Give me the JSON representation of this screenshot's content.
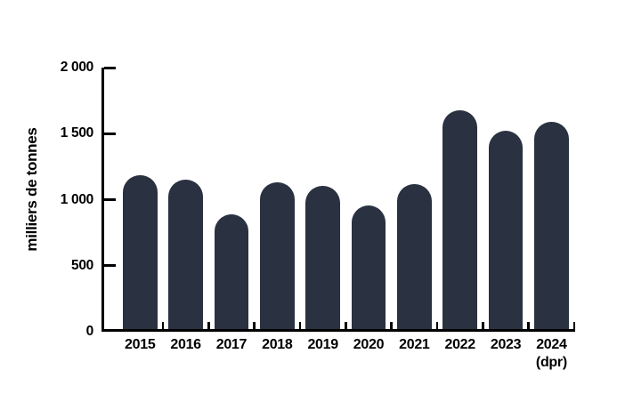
{
  "chart_data": {
    "type": "bar",
    "title": "",
    "xlabel": "",
    "ylabel": "milliers de tonnes",
    "categories": [
      "2015",
      "2016",
      "2017",
      "2018",
      "2019",
      "2020",
      "2021",
      "2022",
      "2023",
      "2024"
    ],
    "last_category_note": "(dpr)",
    "values": [
      1185,
      1150,
      890,
      1130,
      1105,
      955,
      1120,
      1680,
      1520,
      1590
    ],
    "ylim": [
      0,
      2000
    ],
    "yticks": [
      0,
      500,
      1000,
      1500,
      2000
    ],
    "ytick_labels": [
      "0",
      "500",
      "1 000",
      "1 500",
      "2 000"
    ],
    "grid": false,
    "legend": false,
    "bar_color": "#2a3140",
    "axis_color": "#000000",
    "text_color": "#000000",
    "background_color": "#ffffff"
  }
}
